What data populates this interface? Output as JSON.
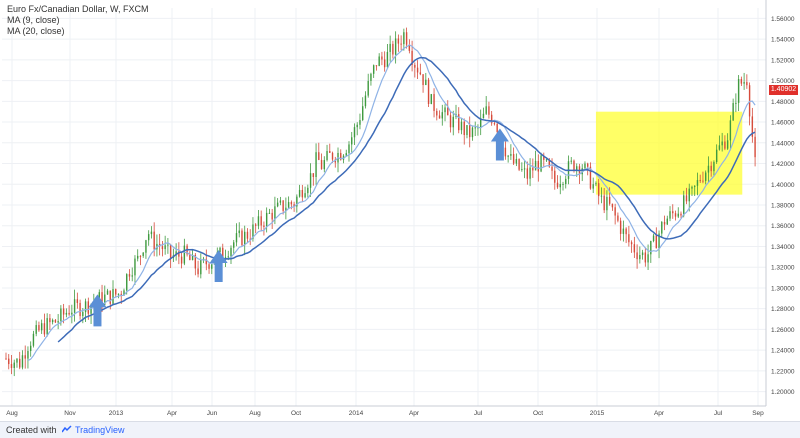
{
  "legend": {
    "title": "Euro Fx/Canadian Dollar, W, FXCM",
    "ma1": "MA (9, close)",
    "ma2": "MA (20, close)"
  },
  "footer": {
    "created_label": "Created with",
    "brand": "TradingView"
  },
  "colors": {
    "up": "#3f9a3f",
    "down": "#d64b3b",
    "ma_fast": "#8fb3e6",
    "ma_slow": "#3d6bb8",
    "highlight": "#ffff33",
    "arrow": "#5b8fd6"
  },
  "chart_data": {
    "type": "candlestick",
    "series": [
      {
        "name": "Euro Fx/Canadian Dollar, W, FXCM"
      },
      {
        "name": "MA (9, close)"
      },
      {
        "name": "MA (20, close)"
      }
    ],
    "ylim": [
      1.19,
      1.57
    ],
    "y_ticks": [
      "1.56000",
      "1.54000",
      "1.52000",
      "1.50000",
      "1.48000",
      "1.46000",
      "1.44000",
      "1.42000",
      "1.40000",
      "1.38000",
      "1.36000",
      "1.34000",
      "1.32000",
      "1.30000",
      "1.28000",
      "1.26000",
      "1.24000",
      "1.22000",
      "1.20000"
    ],
    "x_ticks": [
      "Aug",
      "Nov",
      "2013",
      "Apr",
      "Jun",
      "Aug",
      "Oct",
      "2014",
      "Apr",
      "Jul",
      "Oct",
      "2015",
      "Apr",
      "Jul",
      "Sep"
    ],
    "last_price": "1.40902",
    "close_path": [
      [
        0,
        1.232
      ],
      [
        6,
        1.228
      ],
      [
        10,
        1.248
      ],
      [
        16,
        1.262
      ],
      [
        22,
        1.268
      ],
      [
        28,
        1.28
      ],
      [
        34,
        1.282
      ],
      [
        42,
        1.29
      ],
      [
        50,
        1.295
      ],
      [
        54,
        1.318
      ],
      [
        58,
        1.328
      ],
      [
        62,
        1.355
      ],
      [
        64,
        1.345
      ],
      [
        68,
        1.34
      ],
      [
        72,
        1.33
      ],
      [
        78,
        1.332
      ],
      [
        84,
        1.318
      ],
      [
        88,
        1.325
      ],
      [
        94,
        1.332
      ],
      [
        100,
        1.345
      ],
      [
        106,
        1.352
      ],
      [
        110,
        1.36
      ],
      [
        116,
        1.372
      ],
      [
        122,
        1.38
      ],
      [
        126,
        1.382
      ],
      [
        130,
        1.398
      ],
      [
        134,
        1.41
      ],
      [
        136,
        1.425
      ],
      [
        138,
        1.418
      ],
      [
        142,
        1.428
      ],
      [
        146,
        1.43
      ],
      [
        150,
        1.44
      ],
      [
        154,
        1.46
      ],
      [
        158,
        1.492
      ],
      [
        162,
        1.518
      ],
      [
        166,
        1.522
      ],
      [
        170,
        1.532
      ],
      [
        174,
        1.545
      ],
      [
        176,
        1.54
      ],
      [
        178,
        1.52
      ],
      [
        182,
        1.505
      ],
      [
        186,
        1.478
      ],
      [
        190,
        1.47
      ],
      [
        194,
        1.462
      ],
      [
        198,
        1.458
      ],
      [
        202,
        1.448
      ],
      [
        206,
        1.452
      ],
      [
        210,
        1.47
      ],
      [
        214,
        1.462
      ],
      [
        216,
        1.448
      ],
      [
        220,
        1.425
      ],
      [
        224,
        1.415
      ],
      [
        228,
        1.408
      ],
      [
        232,
        1.42
      ],
      [
        236,
        1.418
      ],
      [
        240,
        1.402
      ],
      [
        244,
        1.41
      ],
      [
        248,
        1.42
      ],
      [
        252,
        1.418
      ],
      [
        256,
        1.402
      ],
      [
        260,
        1.385
      ],
      [
        264,
        1.378
      ],
      [
        268,
        1.362
      ],
      [
        272,
        1.345
      ],
      [
        276,
        1.335
      ],
      [
        280,
        1.33
      ],
      [
        284,
        1.345
      ],
      [
        288,
        1.365
      ],
      [
        292,
        1.372
      ],
      [
        296,
        1.38
      ],
      [
        300,
        1.39
      ],
      [
        304,
        1.408
      ],
      [
        308,
        1.42
      ],
      [
        312,
        1.435
      ],
      [
        316,
        1.448
      ],
      [
        320,
        1.495
      ],
      [
        324,
        1.502
      ],
      [
        328,
        1.409
      ]
    ],
    "annotations": [
      {
        "type": "up-arrow",
        "x": 40
      },
      {
        "type": "up-arrow",
        "x": 93
      },
      {
        "type": "up-arrow",
        "x": 216
      },
      {
        "type": "up-arrow",
        "x": 352
      },
      {
        "type": "highlight-box",
        "x": [
          258,
          322
        ],
        "y": [
          1.39,
          1.47
        ]
      }
    ],
    "xlabel": "",
    "ylabel": "",
    "grid": true,
    "legend_placement": "top-left"
  }
}
